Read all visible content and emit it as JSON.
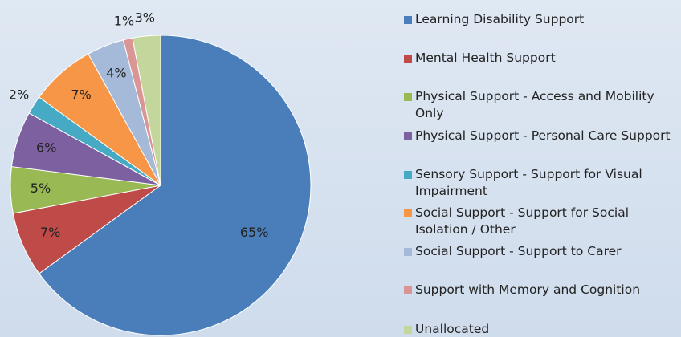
{
  "chart_data": {
    "type": "pie",
    "categories": [
      "Learning Disability Support",
      "Mental Health Support",
      "Physical Support - Access and Mobility Only",
      "Physical Support - Personal Care Support",
      "Sensory Support - Support for Visual Impairment",
      "Social Support - Support for Social Isolation / Other",
      "Social Support - Support to Carer",
      "Support with Memory and Cognition",
      "Unallocated"
    ],
    "values": [
      65,
      7,
      5,
      6,
      2,
      7,
      4,
      1,
      3
    ],
    "value_labels": [
      "65%",
      "7%",
      "5%",
      "6%",
      "2%",
      "7%",
      "4%",
      "1%",
      "3%"
    ],
    "colors": [
      "#4a7ebb",
      "#be4b48",
      "#98b954",
      "#7d60a0",
      "#46aac5",
      "#f79646",
      "#a5b9d9",
      "#d99694",
      "#c3d69b"
    ],
    "legend": "right"
  }
}
